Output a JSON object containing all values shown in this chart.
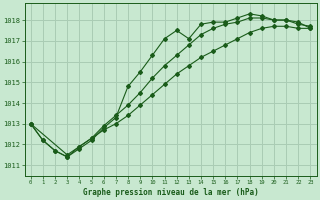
{
  "title": "Graphe pression niveau de la mer (hPa)",
  "background_color": "#c8e8d0",
  "grid_color": "#aaccb4",
  "line_color": "#1a5c1a",
  "xlim": [
    -0.5,
    23.5
  ],
  "ylim": [
    1010.5,
    1018.8
  ],
  "yticks": [
    1011,
    1012,
    1013,
    1014,
    1015,
    1016,
    1017,
    1018
  ],
  "xticks": [
    0,
    1,
    2,
    3,
    4,
    5,
    6,
    7,
    8,
    9,
    10,
    11,
    12,
    13,
    14,
    15,
    16,
    17,
    18,
    19,
    20,
    21,
    22,
    23
  ],
  "series": [
    {
      "x": [
        0,
        1,
        2,
        3,
        4,
        5,
        6,
        7,
        8,
        9,
        10,
        11,
        12,
        13,
        14,
        15,
        16,
        17,
        18,
        19,
        20,
        21,
        22,
        23
      ],
      "y": [
        1013.0,
        1012.2,
        1011.7,
        1011.4,
        1011.8,
        1012.2,
        1012.8,
        1013.3,
        1014.8,
        1015.5,
        1016.3,
        1017.1,
        1017.5,
        1017.1,
        1017.8,
        1017.9,
        1017.9,
        1018.1,
        1018.3,
        1018.2,
        1018.0,
        1018.0,
        1017.8,
        1017.7
      ]
    },
    {
      "x": [
        0,
        1,
        2,
        3,
        4,
        5,
        6,
        7,
        8,
        9,
        10,
        11,
        12,
        13,
        14,
        15,
        16,
        17,
        18,
        19,
        20,
        21,
        22,
        23
      ],
      "y": [
        1013.0,
        1012.2,
        1011.7,
        1011.4,
        1011.9,
        1012.3,
        1012.9,
        1013.4,
        1013.9,
        1014.5,
        1015.2,
        1015.8,
        1016.3,
        1016.8,
        1017.3,
        1017.6,
        1017.8,
        1017.9,
        1018.1,
        1018.1,
        1018.0,
        1018.0,
        1017.9,
        1017.6
      ]
    },
    {
      "x": [
        0,
        3,
        4,
        5,
        6,
        7,
        8,
        9,
        10,
        11,
        12,
        13,
        14,
        15,
        16,
        17,
        18,
        19,
        20,
        21,
        22,
        23
      ],
      "y": [
        1013.0,
        1011.5,
        1011.9,
        1012.3,
        1012.7,
        1013.0,
        1013.4,
        1013.9,
        1014.4,
        1014.9,
        1015.4,
        1015.8,
        1016.2,
        1016.5,
        1016.8,
        1017.1,
        1017.4,
        1017.6,
        1017.7,
        1017.7,
        1017.6,
        1017.6
      ]
    }
  ]
}
